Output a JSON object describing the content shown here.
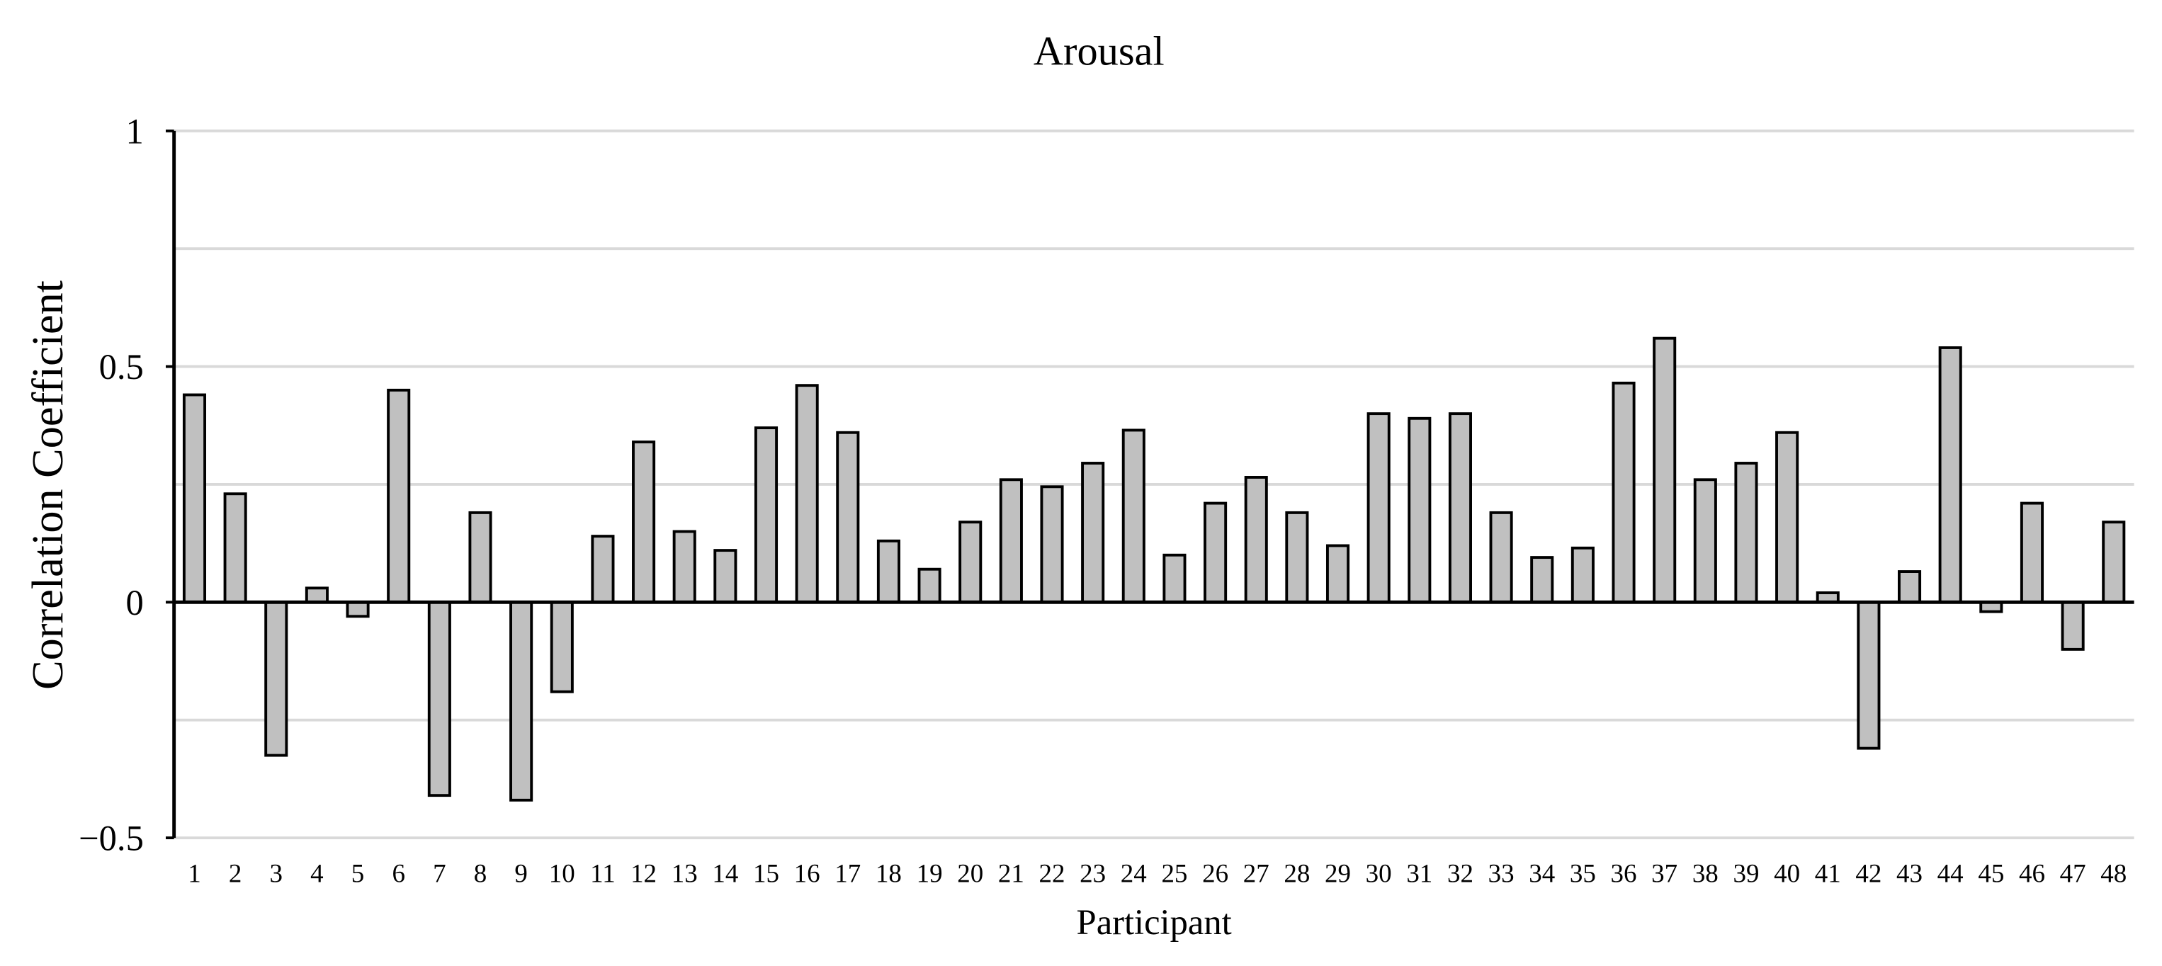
{
  "chart_data": {
    "type": "bar",
    "title": "Arousal",
    "xlabel": "Participant",
    "ylabel": "Correlation Coefficient",
    "ylim": [
      -0.5,
      1
    ],
    "yticks": [
      1,
      0.5,
      0,
      -0.5
    ],
    "ytick_labels": [
      "1",
      "0.5",
      "0",
      "−0.5"
    ],
    "grid": true,
    "grid_step": 0.25,
    "bar_color": "#c0c0c0",
    "bar_edge_color": "#000000",
    "categories": [
      "1",
      "2",
      "3",
      "4",
      "5",
      "6",
      "7",
      "8",
      "9",
      "10",
      "11",
      "12",
      "13",
      "14",
      "15",
      "16",
      "17",
      "18",
      "19",
      "20",
      "21",
      "22",
      "23",
      "24",
      "25",
      "26",
      "27",
      "28",
      "29",
      "30",
      "31",
      "32",
      "33",
      "34",
      "35",
      "36",
      "37",
      "38",
      "39",
      "40",
      "41",
      "42",
      "43",
      "44",
      "45",
      "46",
      "47",
      "48"
    ],
    "values": [
      0.44,
      0.23,
      -0.325,
      0.03,
      -0.03,
      0.45,
      -0.41,
      0.19,
      -0.42,
      -0.19,
      0.14,
      0.34,
      0.15,
      0.11,
      0.37,
      0.46,
      0.36,
      0.13,
      0.07,
      0.17,
      0.26,
      0.245,
      0.295,
      0.365,
      0.1,
      0.21,
      0.265,
      0.19,
      0.12,
      0.4,
      0.39,
      0.4,
      0.19,
      0.095,
      0.115,
      0.465,
      0.56,
      0.26,
      0.295,
      0.36,
      0.02,
      -0.31,
      0.065,
      0.54,
      -0.02,
      0.21,
      -0.1,
      0.17
    ]
  }
}
